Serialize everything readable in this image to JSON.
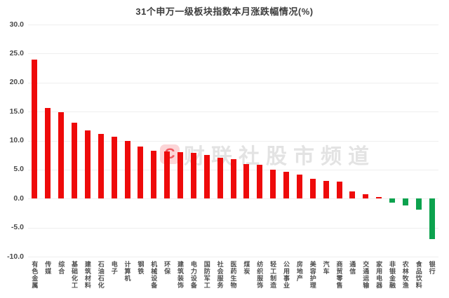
{
  "header": {
    "title": "31个申万一级板块指数本月涨跌幅情况(%)"
  },
  "watermark": {
    "logo_glyph": "C",
    "text": "财联社股市频道"
  },
  "chart_data": {
    "type": "bar",
    "title": "31个申万一级板块指数本月涨跌幅情况(%)",
    "xlabel": "",
    "ylabel": "",
    "ylim": [
      -10,
      30
    ],
    "ytick_interval": 5,
    "yticks": [
      30,
      25,
      20,
      15,
      10,
      5,
      0,
      -5,
      -10
    ],
    "ytick_labels": [
      "30.0",
      "25.0",
      "20.0",
      "15.0",
      "10.0",
      "5.0",
      "0.0",
      "-5.0",
      "-10.0"
    ],
    "grid": true,
    "legend": "none",
    "bar_colors": {
      "positive": "#ee0a0a",
      "negative": "#0ca24e"
    },
    "categories": [
      "有色金属",
      "传媒",
      "综合",
      "基础化工",
      "建筑材料",
      "石油石化",
      "电子",
      "计算机",
      "钢铁",
      "机械设备",
      "环保",
      "建筑装饰",
      "电力设备",
      "国防军工",
      "社会服务",
      "医药生物",
      "煤炭",
      "纺织服饰",
      "轻工制造",
      "公用事业",
      "房地产",
      "美容护理",
      "汽车",
      "商贸零售",
      "通信",
      "交通运输",
      "家用电器",
      "非银金融",
      "农林牧渔",
      "食品饮料",
      "银行"
    ],
    "values": [
      24.0,
      15.6,
      14.9,
      13.1,
      11.7,
      11.2,
      10.7,
      10.0,
      9.0,
      8.3,
      8.1,
      8.0,
      7.9,
      7.5,
      7.0,
      6.8,
      6.0,
      5.8,
      5.0,
      4.6,
      4.2,
      3.4,
      3.1,
      2.9,
      1.3,
      0.8,
      0.3,
      -0.7,
      -1.2,
      -1.9,
      -7.0
    ]
  }
}
